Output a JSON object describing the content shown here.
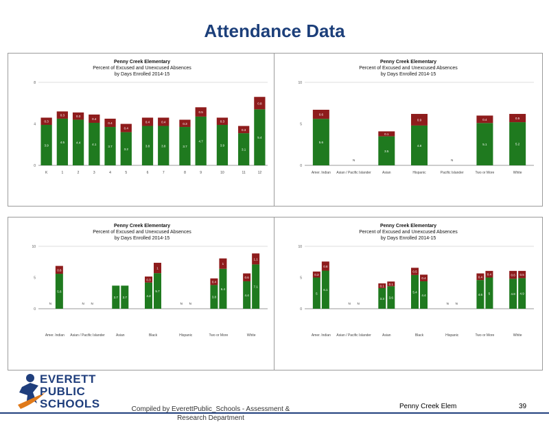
{
  "page": {
    "title": "Attendance Data",
    "credit": "Compiled  by EverettPublic_Schools - Assessment & Research Department",
    "school": "Penny Creek Elem",
    "page_number": "39"
  },
  "logo": {
    "line1": "EVERETT",
    "line2": "PUBLIC",
    "line3": "SCHOOLS"
  },
  "colors": {
    "unexcused": "#8e1c1c",
    "excused": "#1f7a1f",
    "excused_light": "#3fa33f",
    "title": "#1c3f7a"
  },
  "chart_data": [
    {
      "type": "bar",
      "stacked": true,
      "title": "Penny Creek Elementary",
      "subtitle": "Percent of Excused and Unexcused Absences",
      "subtitle2": "by Days Enrolled 2014-15",
      "categories": [
        "K",
        "1",
        "2",
        "3",
        "4",
        "5",
        "6",
        "7",
        "8",
        "9",
        "10",
        "11",
        "12"
      ],
      "gap_after": [
        5,
        7,
        9,
        10
      ],
      "series": [
        {
          "key": "excused",
          "values": [
            3.9,
            4.5,
            4.4,
            4.1,
            3.7,
            3.2,
            3.8,
            3.8,
            3.7,
            4.7,
            3.9,
            3.1,
            5.4
          ]
        },
        {
          "key": "unexcused",
          "values": [
            0.3,
            0.3,
            0.3,
            0.4,
            0.4,
            0.4,
            0.4,
            0.4,
            0.3,
            0.5,
            0.3,
            0.3,
            0.8
          ]
        }
      ],
      "ylim": [
        0,
        8
      ],
      "y_ticks": [
        0,
        4,
        8
      ]
    },
    {
      "type": "bar",
      "stacked": true,
      "title": "Penny Creek Elementary",
      "subtitle": "Percent of Excused and Unexcused Absences",
      "subtitle2": "by Days Enrolled 2014-15",
      "categories": [
        "Amer. Indian",
        "Asian / Pacific Islander",
        "Asian",
        "Hispanic",
        "Pacific Islander",
        "Two or More",
        "White"
      ],
      "series": [
        {
          "key": "excused",
          "values": [
            5.6,
            0,
            3.5,
            4.8,
            0,
            5.1,
            5.2
          ]
        },
        {
          "key": "unexcused",
          "values": [
            0.6,
            0,
            0.1,
            0.9,
            0,
            0.4,
            0.5
          ]
        }
      ],
      "ylim": [
        0,
        10
      ],
      "y_ticks": [
        0,
        5,
        10
      ]
    },
    {
      "type": "bar",
      "stacked": true,
      "title": "Penny Creek Elementary",
      "subtitle": "Percent of Excused and Unexcused Absences",
      "subtitle2": "by Days Enrolled 2014-15",
      "categories": [
        "Amer. Indian",
        "Asian / Pacific Islander",
        "Asian",
        "Black",
        "Hispanic",
        "Two or More",
        "White"
      ],
      "pair_values": [
        [
          [
            0,
            0
          ],
          [
            5.6,
            0.6
          ]
        ],
        [
          [
            0,
            0
          ],
          [
            0,
            0
          ]
        ],
        [
          [
            3.7,
            0
          ],
          [
            3.7,
            0
          ]
        ],
        [
          [
            4.2,
            0.3
          ],
          [
            5.7,
            1.0
          ]
        ],
        [
          [
            0,
            0
          ],
          [
            0,
            0
          ]
        ],
        [
          [
            3.8,
            0.4
          ],
          [
            6.4,
            1.0
          ]
        ],
        [
          [
            4.4,
            0.6
          ],
          [
            7.1,
            1.1
          ]
        ]
      ],
      "ylim": [
        0,
        10
      ],
      "y_ticks": [
        0,
        5,
        10
      ]
    },
    {
      "type": "bar",
      "stacked": true,
      "title": "Penny Creek Elementary",
      "subtitle": "Percent of Excused and Unexcused Absences",
      "subtitle2": "by Days Enrolled 2014-15",
      "categories": [
        "Amer. Indian",
        "Asian / Pacific Islander",
        "Asian",
        "Black",
        "Hispanic",
        "Two or More",
        "White"
      ],
      "pair_values": [
        [
          [
            5.0,
            0.3
          ],
          [
            6.1,
            0.8
          ]
        ],
        [
          [
            0,
            0
          ],
          [
            0,
            0
          ]
        ],
        [
          [
            3.3,
            0.1
          ],
          [
            3.6,
            0.1
          ]
        ],
        [
          [
            5.4,
            0.5
          ],
          [
            4.4,
            0.4
          ]
        ],
        [
          [
            0,
            0
          ],
          [
            0,
            0
          ]
        ],
        [
          [
            4.6,
            0.4
          ],
          [
            5.0,
            0.4
          ]
        ],
        [
          [
            4.8,
            0.6
          ],
          [
            4.9,
            0.5
          ]
        ]
      ],
      "ylim": [
        0,
        10
      ],
      "y_ticks": [
        0,
        5,
        10
      ]
    }
  ]
}
